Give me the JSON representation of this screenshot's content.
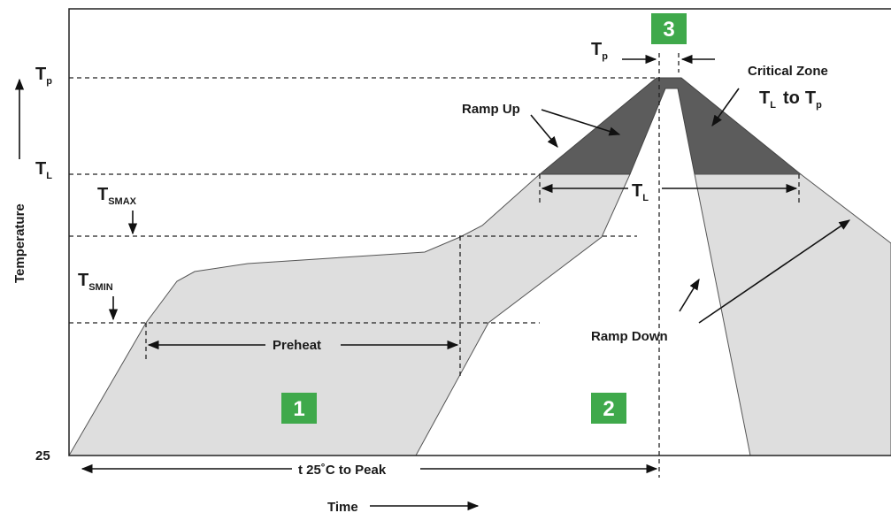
{
  "axis": {
    "y_label": "Temperature",
    "x_label": "Time"
  },
  "levels": {
    "tp": {
      "main": "T",
      "sub": "p"
    },
    "tl": {
      "main": "T",
      "sub": "L"
    },
    "tsmax": {
      "main": "T",
      "sub": "SMAX"
    },
    "tsmin": {
      "main": "T",
      "sub": "SMIN"
    },
    "base": "25"
  },
  "annotations": {
    "ramp_up": "Ramp Up",
    "critical_zone": "Critical Zone",
    "critical_range": {
      "from": {
        "main": "T",
        "sub": "L"
      },
      "joiner": "to",
      "to": {
        "main": "T",
        "sub": "p"
      }
    },
    "preheat": "Preheat",
    "ramp_down": "Ramp Down",
    "peak_time": "t 25˚C to Peak",
    "tl_duration": {
      "main": "T",
      "sub": "L"
    },
    "tp_duration": {
      "main": "T",
      "sub": "p"
    }
  },
  "zones": [
    "1",
    "2",
    "3"
  ]
}
